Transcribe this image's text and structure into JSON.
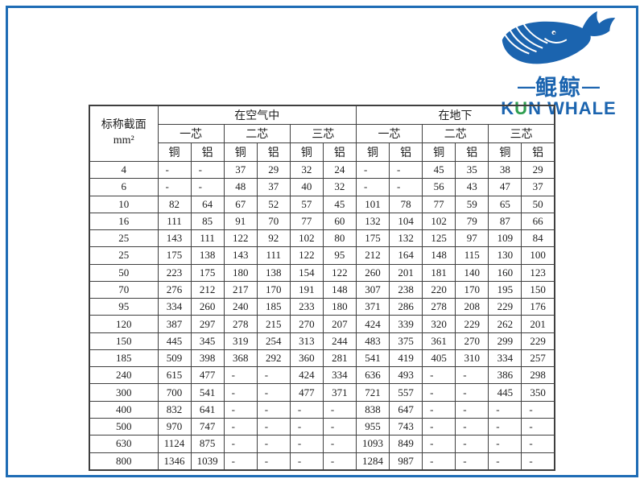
{
  "logo": {
    "dash_left": "—",
    "dash_right": "—",
    "brand_cn": "鲲鲸",
    "brand_en_k": "K",
    "brand_en_u": "U",
    "brand_en_rest": "N WHALE",
    "colors": {
      "blue": "#1b64af",
      "green": "#2f9e50",
      "frame_border": "#1e6cb5"
    }
  },
  "table": {
    "corner": {
      "line1": "标称截面",
      "line2": "mm²"
    },
    "groups": [
      {
        "label": "在空气中"
      },
      {
        "label": "在地下"
      }
    ],
    "cores": [
      "一芯",
      "二芯",
      "三芯",
      "一芯",
      "二芯",
      "三芯"
    ],
    "materials": [
      "铜",
      "铝",
      "铜",
      "铝",
      "铜",
      "铝",
      "铜",
      "铝",
      "铜",
      "铝",
      "铜",
      "铝"
    ],
    "rows": [
      {
        "size": "4",
        "values": [
          "-",
          "-",
          "37",
          "29",
          "32",
          "24",
          "-",
          "-",
          "45",
          "35",
          "38",
          "29"
        ]
      },
      {
        "size": "6",
        "values": [
          "-",
          "-",
          "48",
          "37",
          "40",
          "32",
          "-",
          "-",
          "56",
          "43",
          "47",
          "37"
        ]
      },
      {
        "size": "10",
        "values": [
          "82",
          "64",
          "67",
          "52",
          "57",
          "45",
          "101",
          "78",
          "77",
          "59",
          "65",
          "50"
        ]
      },
      {
        "size": "16",
        "values": [
          "111",
          "85",
          "91",
          "70",
          "77",
          "60",
          "132",
          "104",
          "102",
          "79",
          "87",
          "66"
        ]
      },
      {
        "size": "25",
        "values": [
          "143",
          "111",
          "122",
          "92",
          "102",
          "80",
          "175",
          "132",
          "125",
          "97",
          "109",
          "84"
        ]
      },
      {
        "size": "25",
        "values": [
          "175",
          "138",
          "143",
          "111",
          "122",
          "95",
          "212",
          "164",
          "148",
          "115",
          "130",
          "100"
        ]
      },
      {
        "size": "50",
        "values": [
          "223",
          "175",
          "180",
          "138",
          "154",
          "122",
          "260",
          "201",
          "181",
          "140",
          "160",
          "123"
        ]
      },
      {
        "size": "70",
        "values": [
          "276",
          "212",
          "217",
          "170",
          "191",
          "148",
          "307",
          "238",
          "220",
          "170",
          "195",
          "150"
        ]
      },
      {
        "size": "95",
        "values": [
          "334",
          "260",
          "240",
          "185",
          "233",
          "180",
          "371",
          "286",
          "278",
          "208",
          "229",
          "176"
        ]
      },
      {
        "size": "120",
        "values": [
          "387",
          "297",
          "278",
          "215",
          "270",
          "207",
          "424",
          "339",
          "320",
          "229",
          "262",
          "201"
        ]
      },
      {
        "size": "150",
        "values": [
          "445",
          "345",
          "319",
          "254",
          "313",
          "244",
          "483",
          "375",
          "361",
          "270",
          "299",
          "229"
        ]
      },
      {
        "size": "185",
        "values": [
          "509",
          "398",
          "368",
          "292",
          "360",
          "281",
          "541",
          "419",
          "405",
          "310",
          "334",
          "257"
        ]
      },
      {
        "size": "240",
        "values": [
          "615",
          "477",
          "-",
          "-",
          "424",
          "334",
          "636",
          "493",
          "-",
          "-",
          "386",
          "298"
        ]
      },
      {
        "size": "300",
        "values": [
          "700",
          "541",
          "-",
          "-",
          "477",
          "371",
          "721",
          "557",
          "-",
          "-",
          "445",
          "350"
        ]
      },
      {
        "size": "400",
        "values": [
          "832",
          "641",
          "-",
          "-",
          "-",
          "-",
          "838",
          "647",
          "-",
          "-",
          "-",
          "-"
        ]
      },
      {
        "size": "500",
        "values": [
          "970",
          "747",
          "-",
          "-",
          "-",
          "-",
          "955",
          "743",
          "-",
          "-",
          "-",
          "-"
        ]
      },
      {
        "size": "630",
        "values": [
          "1124",
          "875",
          "-",
          "-",
          "-",
          "-",
          "1093",
          "849",
          "-",
          "-",
          "-",
          "-"
        ]
      },
      {
        "size": "800",
        "values": [
          "1346",
          "1039",
          "-",
          "-",
          "-",
          "-",
          "1284",
          "987",
          "-",
          "-",
          "-",
          "-"
        ]
      }
    ]
  }
}
